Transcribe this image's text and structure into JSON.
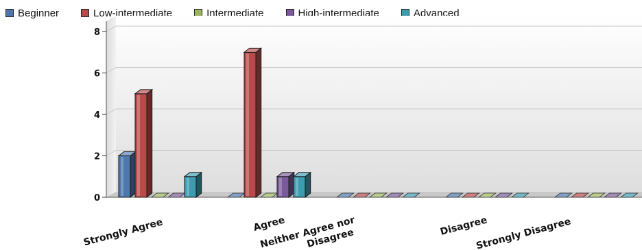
{
  "chart_data": {
    "type": "bar",
    "categories": [
      "Strongly Agree",
      "Agree",
      "Neither Agree nor Disagree",
      "Disagree",
      "Strongly Disagree"
    ],
    "category_lines": [
      [
        "Strongly Agree"
      ],
      [
        "Agree"
      ],
      [
        "Neither Agree nor",
        "Disagree"
      ],
      [
        "Disagree"
      ],
      [
        "Strongly Disagree"
      ]
    ],
    "series": [
      {
        "name": "Beginner",
        "values": [
          2,
          0,
          0,
          0,
          0
        ],
        "color": "#4e77ad"
      },
      {
        "name": "Low-intermediate",
        "values": [
          5,
          7,
          0,
          0,
          0
        ],
        "color": "#b84a4a"
      },
      {
        "name": "Intermediate",
        "values": [
          0,
          0,
          0,
          0,
          0
        ],
        "color": "#9bb55e"
      },
      {
        "name": "High-intermediate",
        "values": [
          0,
          1,
          0,
          0,
          0
        ],
        "color": "#7a5a9a"
      },
      {
        "name": "Advanced",
        "values": [
          1,
          1,
          0,
          0,
          0
        ],
        "color": "#3c9cb0"
      }
    ],
    "ylim": [
      0,
      8.5
    ],
    "yticks": [
      0,
      2,
      4,
      6,
      8
    ],
    "title": "",
    "xlabel": "",
    "ylabel": "",
    "legend_position": "top",
    "grid": true,
    "style": "3d"
  }
}
